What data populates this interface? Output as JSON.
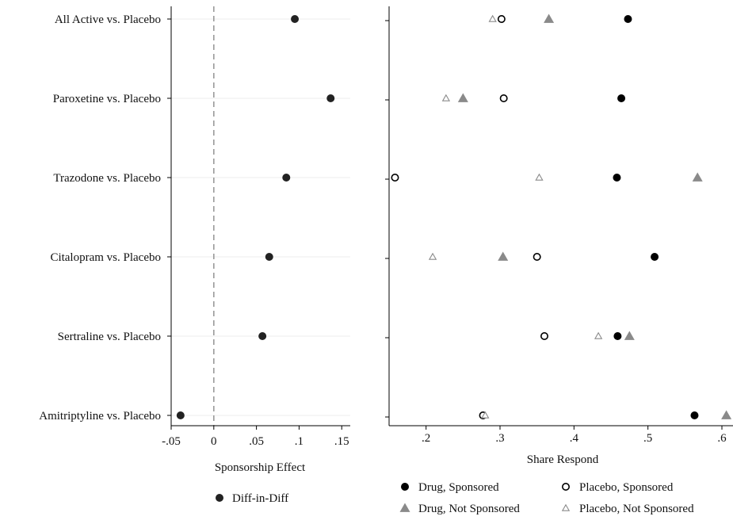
{
  "chart_data": [
    {
      "type": "scatter",
      "categories": [
        "All Active vs. Placebo",
        "Paroxetine vs. Placebo",
        "Trazodone vs. Placebo",
        "Citalopram vs. Placebo",
        "Sertraline vs. Placebo",
        "Amitriptyline vs. Placebo"
      ],
      "xlabel": "Sponsorship Effect",
      "xlim": [
        -0.05,
        0.16
      ],
      "x_ticks": [
        -0.05,
        0,
        0.05,
        0.1,
        0.15
      ],
      "x_tick_labels": [
        "-.05",
        "0",
        ".05",
        ".1",
        ".15"
      ],
      "reference_line_x": 0,
      "reference_line_style": "dashed",
      "grid": "horizontal",
      "legend_position": "bottom",
      "series": [
        {
          "name": "Diff-in-Diff",
          "marker": "filled-circle",
          "color": "#222222",
          "values": [
            0.095,
            0.137,
            0.085,
            0.065,
            0.057,
            -0.039
          ]
        }
      ]
    },
    {
      "type": "scatter",
      "categories": [
        "All Active vs. Placebo",
        "Paroxetine vs. Placebo",
        "Trazodone vs. Placebo",
        "Citalopram vs. Placebo",
        "Sertraline vs. Placebo",
        "Amitriptyline vs. Placebo"
      ],
      "xlabel": "Share Respond",
      "xlim": [
        0.15,
        0.615
      ],
      "x_ticks": [
        0.2,
        0.3,
        0.4,
        0.5,
        0.6
      ],
      "x_tick_labels": [
        ".2",
        ".3",
        ".4",
        ".5",
        ".6"
      ],
      "grid": "none",
      "legend_position": "bottom",
      "series": [
        {
          "name": "Drug, Sponsored",
          "marker": "filled-circle",
          "color": "#000000",
          "values": [
            0.473,
            0.464,
            0.458,
            0.509,
            0.459,
            0.563
          ]
        },
        {
          "name": "Placebo, Sponsored",
          "marker": "hollow-circle",
          "color": "#000000",
          "values": [
            0.302,
            0.305,
            0.158,
            0.35,
            0.36,
            0.277
          ]
        },
        {
          "name": "Drug, Not Sponsored",
          "marker": "filled-triangle",
          "color": "#8a8a8a",
          "values": [
            0.366,
            0.25,
            0.567,
            0.304,
            0.475,
            0.606
          ]
        },
        {
          "name": "Placebo, Not Sponsored",
          "marker": "hollow-triangle",
          "color": "#8a8a8a",
          "values": [
            0.29,
            0.227,
            0.353,
            0.209,
            0.433,
            0.28
          ]
        }
      ]
    }
  ]
}
